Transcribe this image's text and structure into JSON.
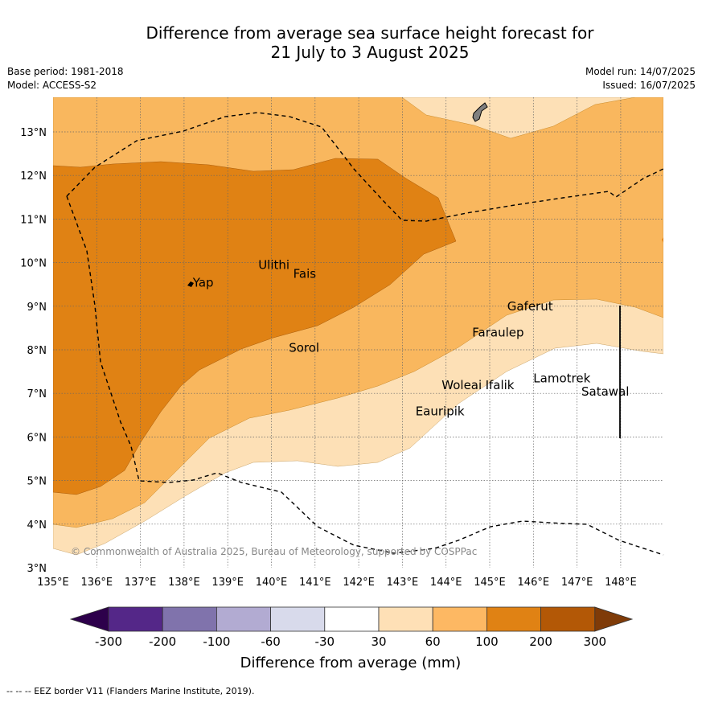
{
  "title": {
    "line1": "Difference from average sea surface height forecast for",
    "line2": "21 July to 3 August 2025"
  },
  "meta": {
    "base_period": "Base period: 1981-2018",
    "model": "Model: ACCESS-S2",
    "model_run": "Model run: 14/07/2025",
    "issued": "Issued: 16/07/2025"
  },
  "map": {
    "lon_range": [
      135,
      149
    ],
    "lat_range": [
      3,
      13.8
    ],
    "lon_ticks": [
      "135°E",
      "136°E",
      "137°E",
      "138°E",
      "139°E",
      "140°E",
      "141°E",
      "142°E",
      "143°E",
      "144°E",
      "145°E",
      "146°E",
      "147°E",
      "148°E"
    ],
    "lat_ticks": [
      "3°N",
      "4°N",
      "5°N",
      "6°N",
      "7°N",
      "8°N",
      "9°N",
      "10°N",
      "11°N",
      "12°N",
      "13°N"
    ],
    "places": [
      {
        "name": "Yap",
        "lon": 138.2,
        "lat": 9.45
      },
      {
        "name": "Ulithi",
        "lon": 139.7,
        "lat": 9.85
      },
      {
        "name": "Fais",
        "lon": 140.5,
        "lat": 9.65
      },
      {
        "name": "Gaferut",
        "lon": 145.4,
        "lat": 8.9
      },
      {
        "name": "Faraulep",
        "lon": 144.6,
        "lat": 8.3
      },
      {
        "name": "Sorol",
        "lon": 140.4,
        "lat": 7.95
      },
      {
        "name": "Woleai",
        "lon": 143.9,
        "lat": 7.1
      },
      {
        "name": "Ifalik",
        "lon": 144.9,
        "lat": 7.1
      },
      {
        "name": "Lamotrek",
        "lon": 146.0,
        "lat": 7.25
      },
      {
        "name": "Satawal",
        "lon": 147.1,
        "lat": 6.95
      },
      {
        "name": "Eauripik",
        "lon": 143.3,
        "lat": 6.5
      }
    ],
    "copyright": "© Commonwealth of Australia 2025, Bureau of Meteorology, supported by COSPPac",
    "colors": {
      "c_30_60": "#fde0b6",
      "c_60_100": "#f9b75e",
      "c_100_200": "#e08214",
      "ocean": "#ffffff"
    }
  },
  "colorbar": {
    "ticks": [
      "-300",
      "-200",
      "-100",
      "-60",
      "-30",
      "30",
      "60",
      "100",
      "200",
      "300"
    ],
    "colors": [
      "#2d004b",
      "#542788",
      "#8073ac",
      "#b2abd2",
      "#d8daeb",
      "#ffffff",
      "#fee0b6",
      "#fdb863",
      "#e08214",
      "#b35806",
      "#7f3b08"
    ],
    "label": "Difference from average (mm)"
  },
  "footer": "--  --  -- EEZ border V11 (Flanders Marine Institute, 2019)."
}
